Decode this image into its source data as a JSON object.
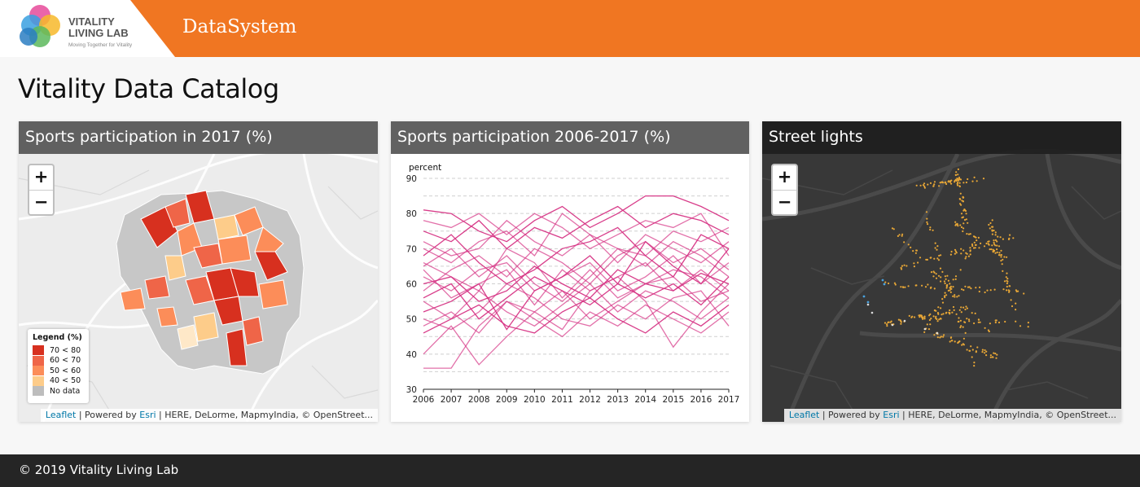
{
  "header": {
    "logo_line1": "VITALITY",
    "logo_line2": "LIVING LAB",
    "logo_tagline": "Moving Together for Vitality",
    "app_name": "DataSystem"
  },
  "page": {
    "title": "Vitality Data Catalog"
  },
  "panels": [
    {
      "title": "Sports participation in 2017 (%)",
      "zoom_in": "+",
      "zoom_out": "−",
      "legend": {
        "title": "Legend (%)",
        "items": [
          {
            "label": "70 < 80",
            "color": "#d7301f"
          },
          {
            "label": "60 < 70",
            "color": "#ef6548"
          },
          {
            "label": "50 < 60",
            "color": "#fc8d59"
          },
          {
            "label": "40 < 50",
            "color": "#fdcc8a"
          },
          {
            "label": "No data",
            "color": "#bdbdbd"
          }
        ]
      },
      "attribution_link": "Leaflet",
      "attribution_sep1": " | Powered by ",
      "attribution_esri": "Esri",
      "attribution_rest": " | HERE, DeLorme, MapmyIndia, © OpenStreet..."
    },
    {
      "title": "Sports participation 2006-2017 (%)"
    },
    {
      "title": "Street lights",
      "zoom_in": "+",
      "zoom_out": "−",
      "attribution_link": "Leaflet",
      "attribution_sep1": " | Powered by ",
      "attribution_esri": "Esri",
      "attribution_rest": " | HERE, DeLorme, MapmyIndia, © OpenStreet..."
    }
  ],
  "chart_data": {
    "type": "line",
    "title": "",
    "ylabel": "percent",
    "xlabel": "",
    "x": [
      2006,
      2007,
      2008,
      2009,
      2010,
      2011,
      2012,
      2013,
      2014,
      2015,
      2016,
      2017
    ],
    "ylim": [
      30,
      90
    ],
    "yticks": [
      30,
      40,
      50,
      60,
      70,
      80,
      90
    ],
    "line_color": "#d63384",
    "grid": "horizontal dashed",
    "series": [
      {
        "values": [
          81,
          80,
          75,
          72,
          78,
          82,
          76,
          80,
          85,
          85,
          82,
          78
        ]
      },
      {
        "values": [
          36,
          36,
          48,
          55,
          52,
          47,
          58,
          62,
          55,
          42,
          52,
          60
        ]
      },
      {
        "values": [
          40,
          48,
          37,
          45,
          52,
          58,
          50,
          55,
          60,
          62,
          55,
          58
        ]
      },
      {
        "values": [
          52,
          55,
          60,
          47,
          58,
          62,
          68,
          60,
          72,
          65,
          60,
          70
        ]
      },
      {
        "values": [
          65,
          70,
          62,
          68,
          60,
          55,
          62,
          70,
          65,
          72,
          68,
          62
        ]
      },
      {
        "values": [
          70,
          66,
          72,
          75,
          68,
          80,
          74,
          70,
          68,
          75,
          72,
          76
        ]
      },
      {
        "values": [
          60,
          62,
          55,
          58,
          65,
          60,
          56,
          64,
          60,
          58,
          63,
          60
        ]
      },
      {
        "values": [
          55,
          50,
          58,
          52,
          48,
          54,
          60,
          52,
          58,
          55,
          50,
          56
        ]
      },
      {
        "values": [
          48,
          52,
          46,
          55,
          50,
          45,
          52,
          48,
          54,
          50,
          46,
          52
        ]
      },
      {
        "values": [
          75,
          72,
          78,
          70,
          76,
          73,
          78,
          82,
          76,
          80,
          78,
          74
        ]
      },
      {
        "values": [
          58,
          64,
          68,
          62,
          70,
          66,
          60,
          68,
          72,
          66,
          70,
          64
        ]
      },
      {
        "values": [
          62,
          58,
          64,
          66,
          58,
          62,
          66,
          58,
          62,
          68,
          60,
          66
        ]
      },
      {
        "values": [
          68,
          74,
          66,
          60,
          64,
          70,
          72,
          76,
          68,
          62,
          74,
          70
        ]
      },
      {
        "values": [
          50,
          47,
          52,
          60,
          56,
          50,
          48,
          54,
          50,
          56,
          58,
          48
        ]
      },
      {
        "values": [
          72,
          68,
          70,
          78,
          72,
          68,
          74,
          66,
          74,
          70,
          66,
          72
        ]
      },
      {
        "values": [
          56,
          60,
          50,
          56,
          62,
          58,
          54,
          60,
          56,
          60,
          54,
          62
        ]
      },
      {
        "values": [
          64,
          56,
          60,
          64,
          54,
          64,
          58,
          62,
          66,
          58,
          64,
          58
        ]
      },
      {
        "values": [
          78,
          76,
          80,
          74,
          80,
          76,
          70,
          74,
          78,
          76,
          80,
          68
        ]
      },
      {
        "values": [
          46,
          50,
          54,
          48,
          46,
          52,
          56,
          50,
          46,
          52,
          48,
          54
        ]
      },
      {
        "values": [
          66,
          62,
          58,
          70,
          66,
          56,
          64,
          56,
          60,
          64,
          62,
          56
        ]
      }
    ]
  }
}
